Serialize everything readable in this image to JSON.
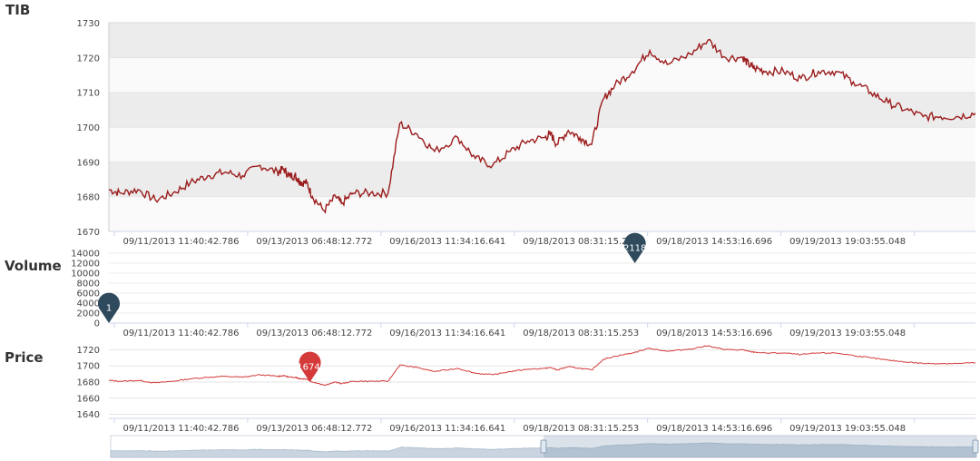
{
  "colors": {
    "price_line": "#9b1c1c",
    "price_line_small": "#d43a3a",
    "volume_pin": "#2e4a5c",
    "price_pin": "#d43a3a",
    "band_dark": "#ececec",
    "band_light": "#fafafa",
    "navigator_fill": "#c9d4e0"
  },
  "chart_data": [
    {
      "type": "line",
      "title": "TIB",
      "ylim": [
        1670,
        1730
      ],
      "yticks": [
        "1730",
        "1720",
        "1710",
        "1700",
        "1690",
        "1680",
        "1670"
      ],
      "xticks": [
        "09/11/2013 11:40:42.786",
        "09/13/2013 06:48:12.772",
        "09/16/2013 11:34:16.641",
        "09/18/2013 08:31:15.253",
        "09/18/2013 14:53:16.696",
        "09/19/2013 19:03:55.048"
      ],
      "series": [
        {
          "x": [
            0,
            0.02,
            0.05,
            0.08,
            0.11,
            0.14,
            0.17,
            0.2,
            0.23,
            0.26,
            0.29,
            0.3,
            0.31,
            0.32,
            0.325,
            0.33,
            0.34,
            0.35,
            0.37,
            0.39,
            0.4,
            0.42,
            0.45,
            0.48,
            0.5,
            0.53,
            0.56,
            0.6,
            0.63,
            0.66,
            0.69,
            0.72,
            0.75,
            0.76,
            0.77,
            0.79,
            0.81,
            0.83,
            0.85,
            0.87,
            0.9,
            0.93,
            0.96,
            1.0,
            1.03,
            1.06,
            1.09,
            1.1,
            1.11,
            1.13,
            1.16,
            1.19,
            1.22,
            1.25,
            1.28,
            1.31,
            1.34,
            1.37,
            1.4,
            1.43,
            1.46,
            1.49
          ],
          "y": [
            1682,
            1681,
            1682,
            1679,
            1681,
            1684,
            1686,
            1687,
            1686,
            1689,
            1687,
            1688,
            1686,
            1686,
            1685,
            1684,
            1684,
            1680,
            1676,
            1680,
            1678,
            1681,
            1681,
            1681,
            1701,
            1698,
            1693,
            1697,
            1691,
            1689,
            1693,
            1696,
            1697,
            1698,
            1695,
            1699,
            1697,
            1695,
            1708,
            1712,
            1716,
            1722,
            1718,
            1721,
            1725,
            1720,
            1720,
            1718,
            1717,
            1716,
            1716,
            1714,
            1716,
            1716,
            1713,
            1710,
            1707,
            1705,
            1703,
            1703,
            1703,
            1704
          ]
        }
      ]
    },
    {
      "type": "bar",
      "title": "Volume",
      "ylim": [
        0,
        14000
      ],
      "yticks": [
        "14000",
        "12000",
        "10000",
        "8000",
        "6000",
        "4000",
        "2000",
        "0"
      ],
      "xticks": [
        "09/11/2013 11:40:42.786",
        "09/13/2013 06:48:12.772",
        "09/16/2013 11:34:16.641",
        "09/18/2013 08:31:15.253",
        "09/18/2013 14:53:16.696",
        "09/19/2013 19:03:55.048"
      ],
      "pins": [
        {
          "label": "1",
          "position": 0.0
        },
        {
          "label": "2118",
          "position": 0.607
        }
      ]
    },
    {
      "type": "line",
      "title": "Price",
      "ylim": [
        1635,
        1725
      ],
      "yticks": [
        "1720",
        "1700",
        "1680",
        "1660",
        "1640"
      ],
      "xticks": [
        "09/11/2013 11:40:42.786",
        "09/13/2013 06:48:12.772",
        "09/16/2013 11:34:16.641",
        "09/18/2013 08:31:15.253",
        "09/18/2013 14:53:16.696",
        "09/19/2013 19:03:55.048"
      ],
      "pins": [
        {
          "label": "1674.",
          "position": 0.232
        }
      ]
    }
  ]
}
